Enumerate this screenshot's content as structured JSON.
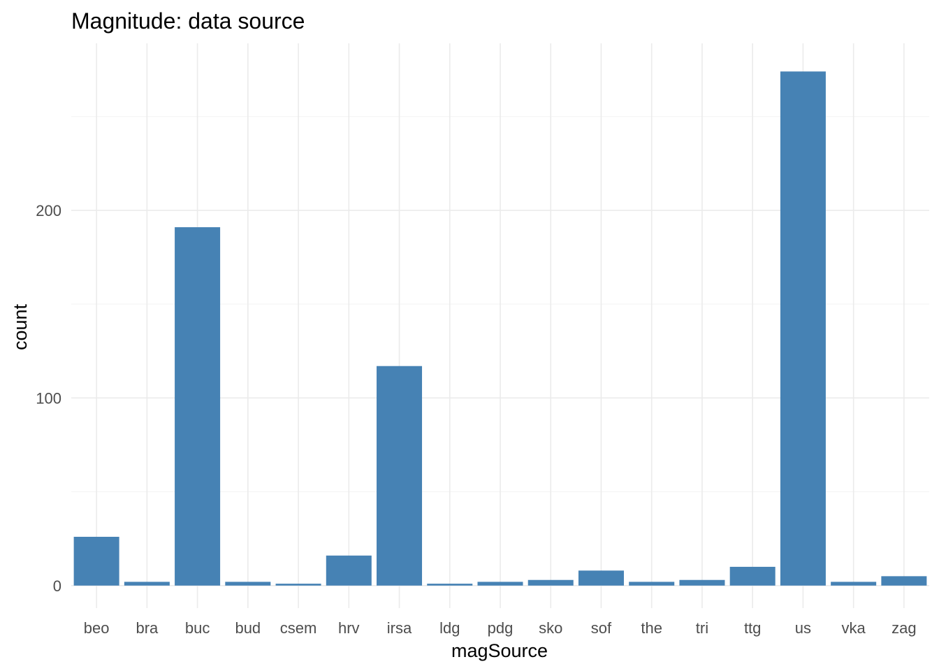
{
  "chart_data": {
    "type": "bar",
    "title": "Magnitude: data source",
    "xlabel": "magSource",
    "ylabel": "count",
    "categories": [
      "beo",
      "bra",
      "buc",
      "bud",
      "csem",
      "hrv",
      "irsa",
      "ldg",
      "pdg",
      "sko",
      "sof",
      "the",
      "tri",
      "ttg",
      "us",
      "vka",
      "zag"
    ],
    "values": [
      26,
      2,
      191,
      2,
      1,
      16,
      117,
      1,
      2,
      3,
      8,
      2,
      3,
      10,
      274,
      2,
      5
    ],
    "ylim": [
      -12,
      289
    ],
    "y_ticks": [
      0,
      100,
      200
    ],
    "y_tick_labels": [
      "0",
      "100",
      "200"
    ],
    "y_minor_ticks": [
      50,
      150,
      250
    ],
    "bar_color": "#4682b4",
    "grid": true,
    "legend": "none"
  }
}
